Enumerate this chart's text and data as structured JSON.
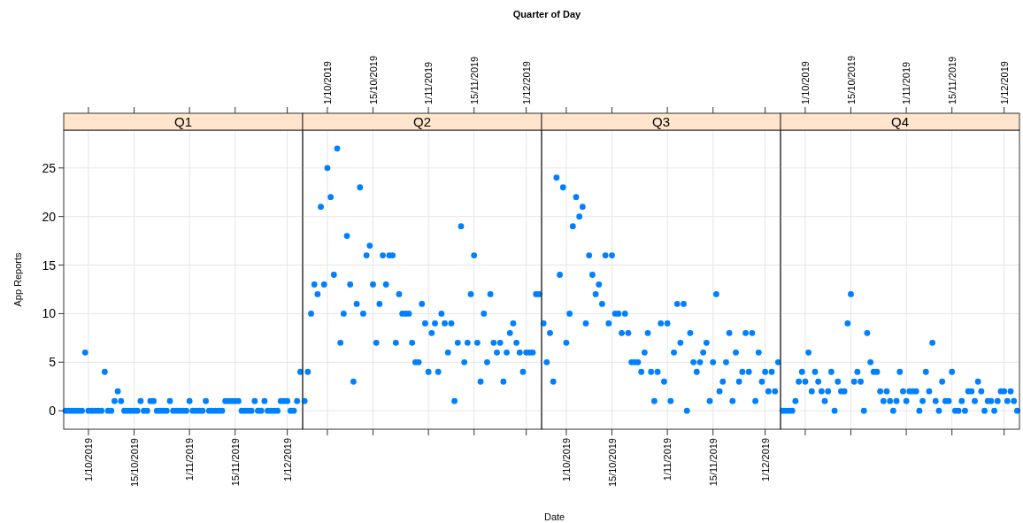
{
  "chart_data": [
    {
      "type": "scatter",
      "title": "Q1",
      "annotations": [
        "Quarter of Day"
      ],
      "ylabel": "App Reports",
      "marker": "circle",
      "grid": true,
      "x": [
        "2019-09-24",
        "2019-09-25",
        "2019-09-26",
        "2019-09-27",
        "2019-09-28",
        "2019-09-29",
        "2019-09-30",
        "2019-10-01",
        "2019-10-02",
        "2019-10-03",
        "2019-10-04",
        "2019-10-05",
        "2019-10-06",
        "2019-10-07",
        "2019-10-08",
        "2019-10-09",
        "2019-10-10",
        "2019-10-11",
        "2019-10-12",
        "2019-10-13",
        "2019-10-14",
        "2019-10-15",
        "2019-10-16",
        "2019-10-17",
        "2019-10-18",
        "2019-10-19",
        "2019-10-20",
        "2019-10-21",
        "2019-10-22",
        "2019-10-23",
        "2019-10-24",
        "2019-10-25",
        "2019-10-26",
        "2019-10-27",
        "2019-10-28",
        "2019-10-29",
        "2019-10-30",
        "2019-10-31",
        "2019-11-01",
        "2019-11-02",
        "2019-11-03",
        "2019-11-04",
        "2019-11-05",
        "2019-11-06",
        "2019-11-07",
        "2019-11-08",
        "2019-11-09",
        "2019-11-10",
        "2019-11-11",
        "2019-11-12",
        "2019-11-13",
        "2019-11-14",
        "2019-11-15",
        "2019-11-16",
        "2019-11-17",
        "2019-11-18",
        "2019-11-19",
        "2019-11-20",
        "2019-11-21",
        "2019-11-22",
        "2019-11-23",
        "2019-11-24",
        "2019-11-25",
        "2019-11-26",
        "2019-11-27",
        "2019-11-28",
        "2019-11-29",
        "2019-11-30",
        "2019-12-01",
        "2019-12-02",
        "2019-12-03",
        "2019-12-04",
        "2019-12-05"
      ],
      "series": [
        {
          "color": "#0080ff",
          "values": [
            0,
            0,
            0,
            0,
            0,
            0,
            6,
            0,
            0,
            0,
            0,
            0,
            4,
            0,
            0,
            1,
            2,
            1,
            0,
            0,
            0,
            0,
            0,
            1,
            0,
            0,
            1,
            1,
            0,
            0,
            0,
            0,
            1,
            0,
            0,
            0,
            0,
            0,
            1,
            0,
            0,
            0,
            0,
            1,
            0,
            0,
            0,
            0,
            0,
            1,
            1,
            1,
            1,
            1,
            0,
            0,
            0,
            0,
            1,
            0,
            0,
            1,
            0,
            0,
            0,
            0,
            1,
            1,
            1,
            0,
            0,
            1,
            4
          ]
        }
      ],
      "xlim": [
        "2019-09-23T10:00",
        "2019-12-05T17:00"
      ],
      "xticks": [
        {
          "value": "2019-10-01",
          "label": "1/10/2019"
        },
        {
          "value": "2019-10-15",
          "label": "15/10/2019"
        },
        {
          "value": "2019-11-01",
          "label": "1/11/2019"
        },
        {
          "value": "2019-11-15",
          "label": "15/11/2019"
        },
        {
          "value": "2019-12-01",
          "label": "1/12/2019"
        }
      ],
      "ylim": [
        -1.9,
        28.9
      ],
      "yticks": [
        0,
        5,
        10,
        15,
        20,
        25
      ]
    },
    {
      "type": "scatter",
      "title": "Q2",
      "marker": "circle",
      "grid": true,
      "tick_labels": "x",
      "x": [
        "2019-09-24",
        "2019-09-25",
        "2019-09-26",
        "2019-09-27",
        "2019-09-28",
        "2019-09-29",
        "2019-09-30",
        "2019-10-01",
        "2019-10-02",
        "2019-10-03",
        "2019-10-04",
        "2019-10-05",
        "2019-10-06",
        "2019-10-07",
        "2019-10-08",
        "2019-10-09",
        "2019-10-10",
        "2019-10-11",
        "2019-10-12",
        "2019-10-13",
        "2019-10-14",
        "2019-10-15",
        "2019-10-16",
        "2019-10-17",
        "2019-10-18",
        "2019-10-19",
        "2019-10-20",
        "2019-10-21",
        "2019-10-22",
        "2019-10-23",
        "2019-10-24",
        "2019-10-25",
        "2019-10-26",
        "2019-10-27",
        "2019-10-28",
        "2019-10-29",
        "2019-10-30",
        "2019-10-31",
        "2019-11-01",
        "2019-11-02",
        "2019-11-03",
        "2019-11-04",
        "2019-11-05",
        "2019-11-06",
        "2019-11-07",
        "2019-11-08",
        "2019-11-09",
        "2019-11-10",
        "2019-11-11",
        "2019-11-12",
        "2019-11-13",
        "2019-11-14",
        "2019-11-15",
        "2019-11-16",
        "2019-11-17",
        "2019-11-18",
        "2019-11-19",
        "2019-11-20",
        "2019-11-21",
        "2019-11-22",
        "2019-11-23",
        "2019-11-24",
        "2019-11-25",
        "2019-11-26",
        "2019-11-27",
        "2019-11-28",
        "2019-11-29",
        "2019-11-30",
        "2019-12-01",
        "2019-12-02",
        "2019-12-03",
        "2019-12-04",
        "2019-12-05"
      ],
      "series": [
        {
          "color": "#0080ff",
          "values": [
            1,
            4,
            10,
            13,
            12,
            21,
            13,
            25,
            22,
            14,
            27,
            7,
            10,
            18,
            13,
            3,
            11,
            23,
            10,
            16,
            17,
            13,
            7,
            11,
            16,
            13,
            16,
            16,
            7,
            12,
            10,
            10,
            10,
            7,
            5,
            5,
            11,
            9,
            4,
            8,
            9,
            4,
            10,
            9,
            6,
            9,
            1,
            7,
            19,
            5,
            7,
            12,
            16,
            7,
            3,
            10,
            5,
            12,
            7,
            6,
            7,
            3,
            6,
            8,
            9,
            7,
            6,
            4,
            6,
            6,
            6,
            12,
            12
          ]
        }
      ],
      "xlim": [
        "2019-09-23T10:00",
        "2019-12-05T17:00"
      ],
      "xticks": [
        {
          "value": "2019-10-01",
          "label": "1/10/2019"
        },
        {
          "value": "2019-10-15",
          "label": "15/10/2019"
        },
        {
          "value": "2019-11-01",
          "label": "1/11/2019"
        },
        {
          "value": "2019-11-15",
          "label": "15/11/2019"
        },
        {
          "value": "2019-12-01",
          "label": "1/12/2019"
        }
      ],
      "ylim": [
        -1.9,
        28.9
      ],
      "yticks": [
        0,
        5,
        10,
        15,
        20,
        25
      ]
    },
    {
      "type": "scatter",
      "title": "Q3",
      "xlabel": "Date",
      "marker": "circle",
      "grid": true,
      "tick_labels": "x",
      "x": [
        "2019-09-24",
        "2019-09-25",
        "2019-09-26",
        "2019-09-27",
        "2019-09-28",
        "2019-09-29",
        "2019-09-30",
        "2019-10-01",
        "2019-10-02",
        "2019-10-03",
        "2019-10-04",
        "2019-10-05",
        "2019-10-06",
        "2019-10-07",
        "2019-10-08",
        "2019-10-09",
        "2019-10-10",
        "2019-10-11",
        "2019-10-12",
        "2019-10-13",
        "2019-10-14",
        "2019-10-15",
        "2019-10-16",
        "2019-10-17",
        "2019-10-18",
        "2019-10-19",
        "2019-10-20",
        "2019-10-21",
        "2019-10-22",
        "2019-10-23",
        "2019-10-24",
        "2019-10-25",
        "2019-10-26",
        "2019-10-27",
        "2019-10-28",
        "2019-10-29",
        "2019-10-30",
        "2019-10-31",
        "2019-11-01",
        "2019-11-02",
        "2019-11-03",
        "2019-11-04",
        "2019-11-05",
        "2019-11-06",
        "2019-11-07",
        "2019-11-08",
        "2019-11-09",
        "2019-11-10",
        "2019-11-11",
        "2019-11-12",
        "2019-11-13",
        "2019-11-14",
        "2019-11-15",
        "2019-11-16",
        "2019-11-17",
        "2019-11-18",
        "2019-11-19",
        "2019-11-20",
        "2019-11-21",
        "2019-11-22",
        "2019-11-23",
        "2019-11-24",
        "2019-11-25",
        "2019-11-26",
        "2019-11-27",
        "2019-11-28",
        "2019-11-29",
        "2019-11-30",
        "2019-12-01",
        "2019-12-02",
        "2019-12-03",
        "2019-12-04",
        "2019-12-05"
      ],
      "series": [
        {
          "color": "#0080ff",
          "values": [
            9,
            5,
            8,
            3,
            24,
            14,
            23,
            7,
            10,
            19,
            22,
            20,
            21,
            9,
            16,
            14,
            12,
            13,
            11,
            16,
            9,
            16,
            10,
            10,
            8,
            10,
            8,
            5,
            5,
            5,
            4,
            6,
            8,
            4,
            1,
            4,
            9,
            3,
            9,
            1,
            6,
            11,
            7,
            11,
            0,
            8,
            5,
            4,
            5,
            6,
            7,
            1,
            5,
            12,
            2,
            3,
            5,
            8,
            1,
            6,
            3,
            4,
            8,
            4,
            8,
            1,
            6,
            3,
            4,
            2,
            4,
            2,
            5
          ]
        }
      ],
      "xlim": [
        "2019-09-23T10:00",
        "2019-12-05T17:00"
      ],
      "xticks": [
        {
          "value": "2019-10-01",
          "label": "1/10/2019"
        },
        {
          "value": "2019-10-15",
          "label": "15/10/2019"
        },
        {
          "value": "2019-11-01",
          "label": "1/11/2019"
        },
        {
          "value": "2019-11-15",
          "label": "15/11/2019"
        },
        {
          "value": "2019-12-01",
          "label": "1/12/2019"
        }
      ],
      "ylim": [
        -1.9,
        28.9
      ],
      "yticks": [
        0,
        5,
        10,
        15,
        20,
        25
      ]
    },
    {
      "type": "scatter",
      "title": "Q4",
      "marker": "circle",
      "grid": true,
      "tick_labels": "x",
      "x": [
        "2019-09-24",
        "2019-09-25",
        "2019-09-26",
        "2019-09-27",
        "2019-09-28",
        "2019-09-29",
        "2019-09-30",
        "2019-10-01",
        "2019-10-02",
        "2019-10-03",
        "2019-10-04",
        "2019-10-05",
        "2019-10-06",
        "2019-10-07",
        "2019-10-08",
        "2019-10-09",
        "2019-10-10",
        "2019-10-11",
        "2019-10-12",
        "2019-10-13",
        "2019-10-14",
        "2019-10-15",
        "2019-10-16",
        "2019-10-17",
        "2019-10-18",
        "2019-10-19",
        "2019-10-20",
        "2019-10-21",
        "2019-10-22",
        "2019-10-23",
        "2019-10-24",
        "2019-10-25",
        "2019-10-26",
        "2019-10-27",
        "2019-10-28",
        "2019-10-29",
        "2019-10-30",
        "2019-10-31",
        "2019-11-01",
        "2019-11-02",
        "2019-11-03",
        "2019-11-04",
        "2019-11-05",
        "2019-11-06",
        "2019-11-07",
        "2019-11-08",
        "2019-11-09",
        "2019-11-10",
        "2019-11-11",
        "2019-11-12",
        "2019-11-13",
        "2019-11-14",
        "2019-11-15",
        "2019-11-16",
        "2019-11-17",
        "2019-11-18",
        "2019-11-19",
        "2019-11-20",
        "2019-11-21",
        "2019-11-22",
        "2019-11-23",
        "2019-11-24",
        "2019-11-25",
        "2019-11-26",
        "2019-11-27",
        "2019-11-28",
        "2019-11-29",
        "2019-11-30",
        "2019-12-01",
        "2019-12-02",
        "2019-12-03",
        "2019-12-04",
        "2019-12-05"
      ],
      "series": [
        {
          "color": "#0080ff",
          "values": [
            0,
            0,
            0,
            0,
            1,
            3,
            4,
            3,
            6,
            2,
            4,
            3,
            2,
            1,
            2,
            4,
            0,
            3,
            2,
            2,
            9,
            12,
            3,
            4,
            3,
            0,
            8,
            5,
            4,
            4,
            2,
            1,
            2,
            1,
            0,
            1,
            4,
            2,
            1,
            2,
            2,
            2,
            0,
            1,
            4,
            2,
            7,
            1,
            0,
            3,
            1,
            1,
            4,
            0,
            0,
            1,
            0,
            2,
            2,
            1,
            3,
            2,
            0,
            1,
            1,
            0,
            1,
            2,
            2,
            1,
            2,
            1,
            0
          ]
        }
      ],
      "xlim": [
        "2019-09-23T10:00",
        "2019-12-05T17:00"
      ],
      "xticks": [
        {
          "value": "2019-10-01",
          "label": "1/10/2019"
        },
        {
          "value": "2019-10-15",
          "label": "15/10/2019"
        },
        {
          "value": "2019-11-01",
          "label": "1/11/2019"
        },
        {
          "value": "2019-11-15",
          "label": "15/11/2019"
        },
        {
          "value": "2019-12-01",
          "label": "1/12/2019"
        }
      ],
      "ylim": [
        -1.9,
        28.9
      ],
      "yticks": [
        0,
        5,
        10,
        15,
        20,
        25
      ]
    }
  ]
}
